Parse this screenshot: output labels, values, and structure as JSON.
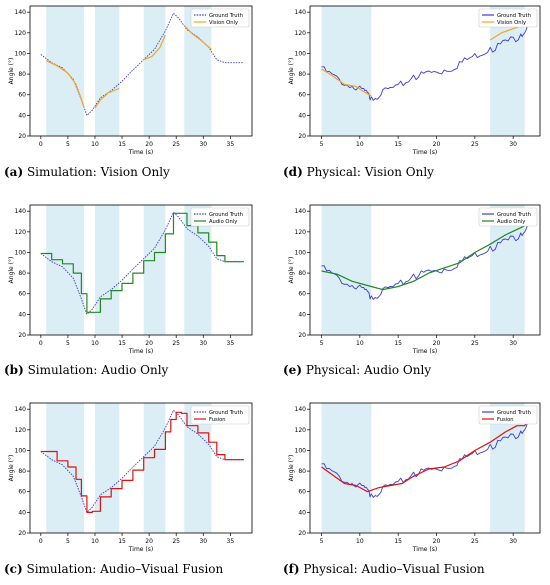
{
  "captions": [
    {
      "tag": "(a)",
      "text": " Simulation: Vision Only"
    },
    {
      "tag": "(d)",
      "text": " Physical: Vision Only"
    },
    {
      "tag": "(b)",
      "text": " Simulation: Audio Only"
    },
    {
      "tag": "(e)",
      "text": " Physical: Audio Only"
    },
    {
      "tag": "(c)",
      "text": " Simulation: Audio–Visual Fusion"
    },
    {
      "tag": "(f)",
      "text": " Physical: Audio–Visual Fusion"
    }
  ],
  "chart_data": [
    {
      "id": "a",
      "type": "line",
      "xlabel": "Time (s)",
      "ylabel": "Angle (°)",
      "xlim": [
        -2,
        39
      ],
      "ylim": [
        20,
        146
      ],
      "xticks": [
        0,
        5,
        10,
        15,
        20,
        25,
        30,
        35
      ],
      "yticks": [
        20,
        40,
        60,
        80,
        100,
        120,
        140
      ],
      "shaded": [
        [
          1,
          8
        ],
        [
          10,
          14.5
        ],
        [
          19,
          23
        ],
        [
          26.5,
          31.5
        ]
      ],
      "legend": [
        "Ground Truth",
        "Vision Only"
      ],
      "series": [
        {
          "name": "Ground Truth",
          "color": "#3b3bd4",
          "style": "dotted",
          "x": [
            0,
            2,
            4,
            6,
            7.5,
            8.5,
            9.5,
            11,
            13,
            15,
            17,
            19,
            21,
            23,
            24.5,
            25.5,
            27,
            29,
            31,
            32.5,
            34,
            37.5
          ],
          "y": [
            99,
            91,
            86,
            75,
            55,
            40,
            45,
            57,
            64,
            73,
            84,
            94,
            104,
            122,
            139,
            134,
            123,
            116,
            106,
            94,
            91,
            91
          ]
        },
        {
          "name": "Vision Only",
          "color": "#f5a623",
          "style": "solid",
          "segments": [
            {
              "x": [
                1,
                3,
                5,
                6.5,
                7.5,
                8
              ],
              "y": [
                93,
                88,
                81,
                70,
                56,
                47
              ]
            },
            {
              "x": [
                10,
                11,
                12.5,
                14.5
              ],
              "y": [
                47,
                55,
                62,
                66
              ]
            },
            {
              "x": [
                19,
                20.5,
                22,
                23
              ],
              "y": [
                94,
                97,
                106,
                118
              ]
            },
            {
              "x": [
                26.5,
                28,
                29.5,
                31.5
              ],
              "y": [
                127,
                119,
                113,
                104
              ]
            }
          ]
        }
      ]
    },
    {
      "id": "d",
      "type": "line",
      "xlabel": "Time (s)",
      "ylabel": "Angle (°)",
      "xlim": [
        3.5,
        33.5
      ],
      "ylim": [
        20,
        146
      ],
      "xticks": [
        5,
        10,
        15,
        20,
        25,
        30
      ],
      "yticks": [
        20,
        40,
        60,
        80,
        100,
        120,
        140
      ],
      "shaded": [
        [
          5,
          11.5
        ],
        [
          27,
          31.5
        ]
      ],
      "legend": [
        "Ground Truth",
        "Vision Only"
      ],
      "series": [
        {
          "name": "Ground Truth",
          "color": "#3b3bd4",
          "style": "noisy",
          "x": [
            5,
            7,
            9,
            10.5,
            11.5,
            13,
            15,
            17,
            19,
            21,
            23,
            25,
            27,
            29,
            31,
            32
          ],
          "y": [
            87,
            78,
            68,
            66,
            58,
            65,
            70,
            79,
            83,
            84,
            92,
            100,
            106,
            113,
            119,
            130
          ]
        },
        {
          "name": "Vision Only",
          "color": "#f5a623",
          "style": "solid",
          "segments": [
            {
              "x": [
                5,
                6.5,
                8,
                9.5,
                10.5,
                11.5
              ],
              "y": [
                85,
                78,
                70,
                68,
                63,
                59
              ]
            },
            {
              "x": [
                27,
                28.5,
                30,
                31.5
              ],
              "y": [
                113,
                120,
                124,
                128
              ]
            }
          ]
        }
      ]
    },
    {
      "id": "b",
      "type": "line",
      "xlabel": "Time (s)",
      "ylabel": "Angle (°)",
      "xlim": [
        -2,
        39
      ],
      "ylim": [
        20,
        146
      ],
      "xticks": [
        0,
        5,
        10,
        15,
        20,
        25,
        30,
        35
      ],
      "yticks": [
        20,
        40,
        60,
        80,
        100,
        120,
        140
      ],
      "shaded": [
        [
          1,
          8
        ],
        [
          10,
          14.5
        ],
        [
          19,
          23
        ],
        [
          26.5,
          31.5
        ]
      ],
      "legend": [
        "Ground Truth",
        "Audio Only"
      ],
      "series": [
        {
          "name": "Ground Truth",
          "color": "#3b3bd4",
          "style": "dotted",
          "x": [
            0,
            2,
            4,
            6,
            7.5,
            8.5,
            9.5,
            11,
            13,
            15,
            17,
            19,
            21,
            23,
            24.5,
            25.5,
            27,
            29,
            31,
            32.5,
            34,
            37.5
          ],
          "y": [
            99,
            91,
            86,
            75,
            55,
            40,
            45,
            57,
            64,
            73,
            84,
            94,
            104,
            122,
            139,
            134,
            123,
            116,
            106,
            94,
            91,
            91
          ]
        },
        {
          "name": "Audio Only",
          "color": "#1f8a1f",
          "style": "step",
          "x": [
            0,
            2,
            4,
            6,
            7.5,
            8.5,
            9.5,
            11,
            13,
            15,
            17,
            19,
            21,
            23,
            24.5,
            25.5,
            27,
            29,
            31,
            32.5,
            34,
            37.5
          ],
          "y": [
            99,
            93,
            89,
            80,
            60,
            42,
            42,
            55,
            63,
            70,
            80,
            92,
            100,
            118,
            138,
            138,
            126,
            119,
            110,
            97,
            91,
            91
          ]
        }
      ]
    },
    {
      "id": "e",
      "type": "line",
      "xlabel": "Time (s)",
      "ylabel": "Angle (°)",
      "xlim": [
        3.5,
        33.5
      ],
      "ylim": [
        20,
        146
      ],
      "xticks": [
        5,
        10,
        15,
        20,
        25,
        30
      ],
      "yticks": [
        20,
        40,
        60,
        80,
        100,
        120,
        140
      ],
      "shaded": [
        [
          5,
          11.5
        ],
        [
          27,
          31.5
        ]
      ],
      "legend": [
        "Ground Truth",
        "Audio Only"
      ],
      "series": [
        {
          "name": "Ground Truth",
          "color": "#3b3bd4",
          "style": "noisy",
          "x": [
            5,
            7,
            9,
            10.5,
            11.5,
            13,
            15,
            17,
            19,
            21,
            23,
            25,
            27,
            29,
            31,
            32
          ],
          "y": [
            87,
            78,
            68,
            66,
            58,
            65,
            70,
            79,
            83,
            84,
            92,
            100,
            106,
            113,
            119,
            130
          ]
        },
        {
          "name": "Audio Only",
          "color": "#1f8a1f",
          "style": "solid",
          "x": [
            5,
            7,
            9,
            11,
            13,
            15,
            17,
            19,
            21,
            23,
            25,
            27,
            29,
            31,
            32
          ],
          "y": [
            82,
            79,
            72,
            68,
            64,
            67,
            72,
            80,
            85,
            90,
            100,
            108,
            117,
            124,
            128
          ]
        }
      ]
    },
    {
      "id": "c",
      "type": "line",
      "xlabel": "Time (s)",
      "ylabel": "Angle (°)",
      "xlim": [
        -2,
        39
      ],
      "ylim": [
        20,
        146
      ],
      "xticks": [
        0,
        5,
        10,
        15,
        20,
        25,
        30,
        35
      ],
      "yticks": [
        20,
        40,
        60,
        80,
        100,
        120,
        140
      ],
      "shaded": [
        [
          1,
          8
        ],
        [
          10,
          14.5
        ],
        [
          19,
          23
        ],
        [
          26.5,
          31.5
        ]
      ],
      "legend": [
        "Ground Truth",
        "Fusion"
      ],
      "series": [
        {
          "name": "Ground Truth",
          "color": "#3b3bd4",
          "style": "dotted",
          "x": [
            0,
            2,
            4,
            6,
            7.5,
            8.5,
            9.5,
            11,
            13,
            15,
            17,
            19,
            21,
            23,
            24.5,
            25.5,
            27,
            29,
            31,
            32.5,
            34,
            37.5
          ],
          "y": [
            99,
            91,
            86,
            75,
            55,
            40,
            45,
            57,
            64,
            73,
            84,
            94,
            104,
            122,
            139,
            134,
            123,
            116,
            106,
            94,
            91,
            91
          ]
        },
        {
          "name": "Fusion",
          "color": "#e01010",
          "style": "step",
          "x": [
            0,
            1,
            3,
            5,
            6.5,
            7.5,
            8.5,
            9.5,
            11,
            13,
            15,
            17,
            19,
            21,
            23,
            24,
            25,
            26,
            27,
            29,
            31,
            32.5,
            34,
            37.5
          ],
          "y": [
            99,
            99,
            90,
            84,
            72,
            56,
            40,
            41,
            55,
            63,
            71,
            81,
            93,
            101,
            118,
            130,
            137,
            136,
            124,
            117,
            108,
            96,
            91,
            91
          ]
        }
      ]
    },
    {
      "id": "f",
      "type": "line",
      "xlabel": "Time (s)",
      "ylabel": "Angle (°)",
      "xlim": [
        3.5,
        33.5
      ],
      "ylim": [
        20,
        146
      ],
      "xticks": [
        5,
        10,
        15,
        20,
        25,
        30
      ],
      "yticks": [
        20,
        40,
        60,
        80,
        100,
        120,
        140
      ],
      "shaded": [
        [
          5,
          11.5
        ],
        [
          27,
          31.5
        ]
      ],
      "legend": [
        "Ground Truth",
        "Fusion"
      ],
      "series": [
        {
          "name": "Ground Truth",
          "color": "#3b3bd4",
          "style": "noisy",
          "x": [
            5,
            7,
            9,
            10.5,
            11.5,
            13,
            15,
            17,
            19,
            21,
            23,
            25,
            27,
            29,
            31,
            32
          ],
          "y": [
            87,
            78,
            68,
            66,
            58,
            65,
            70,
            79,
            83,
            84,
            92,
            100,
            106,
            113,
            119,
            130
          ]
        },
        {
          "name": "Fusion",
          "color": "#e01010",
          "style": "solid",
          "x": [
            5,
            6.5,
            8,
            9.5,
            11,
            12.5,
            14,
            15.5,
            17,
            19,
            21,
            23,
            25,
            27,
            29,
            30.5,
            31.5,
            32
          ],
          "y": [
            84,
            76,
            68,
            66,
            60,
            64,
            66,
            68,
            75,
            82,
            84,
            90,
            100,
            108,
            118,
            124,
            124,
            130
          ]
        }
      ]
    }
  ]
}
